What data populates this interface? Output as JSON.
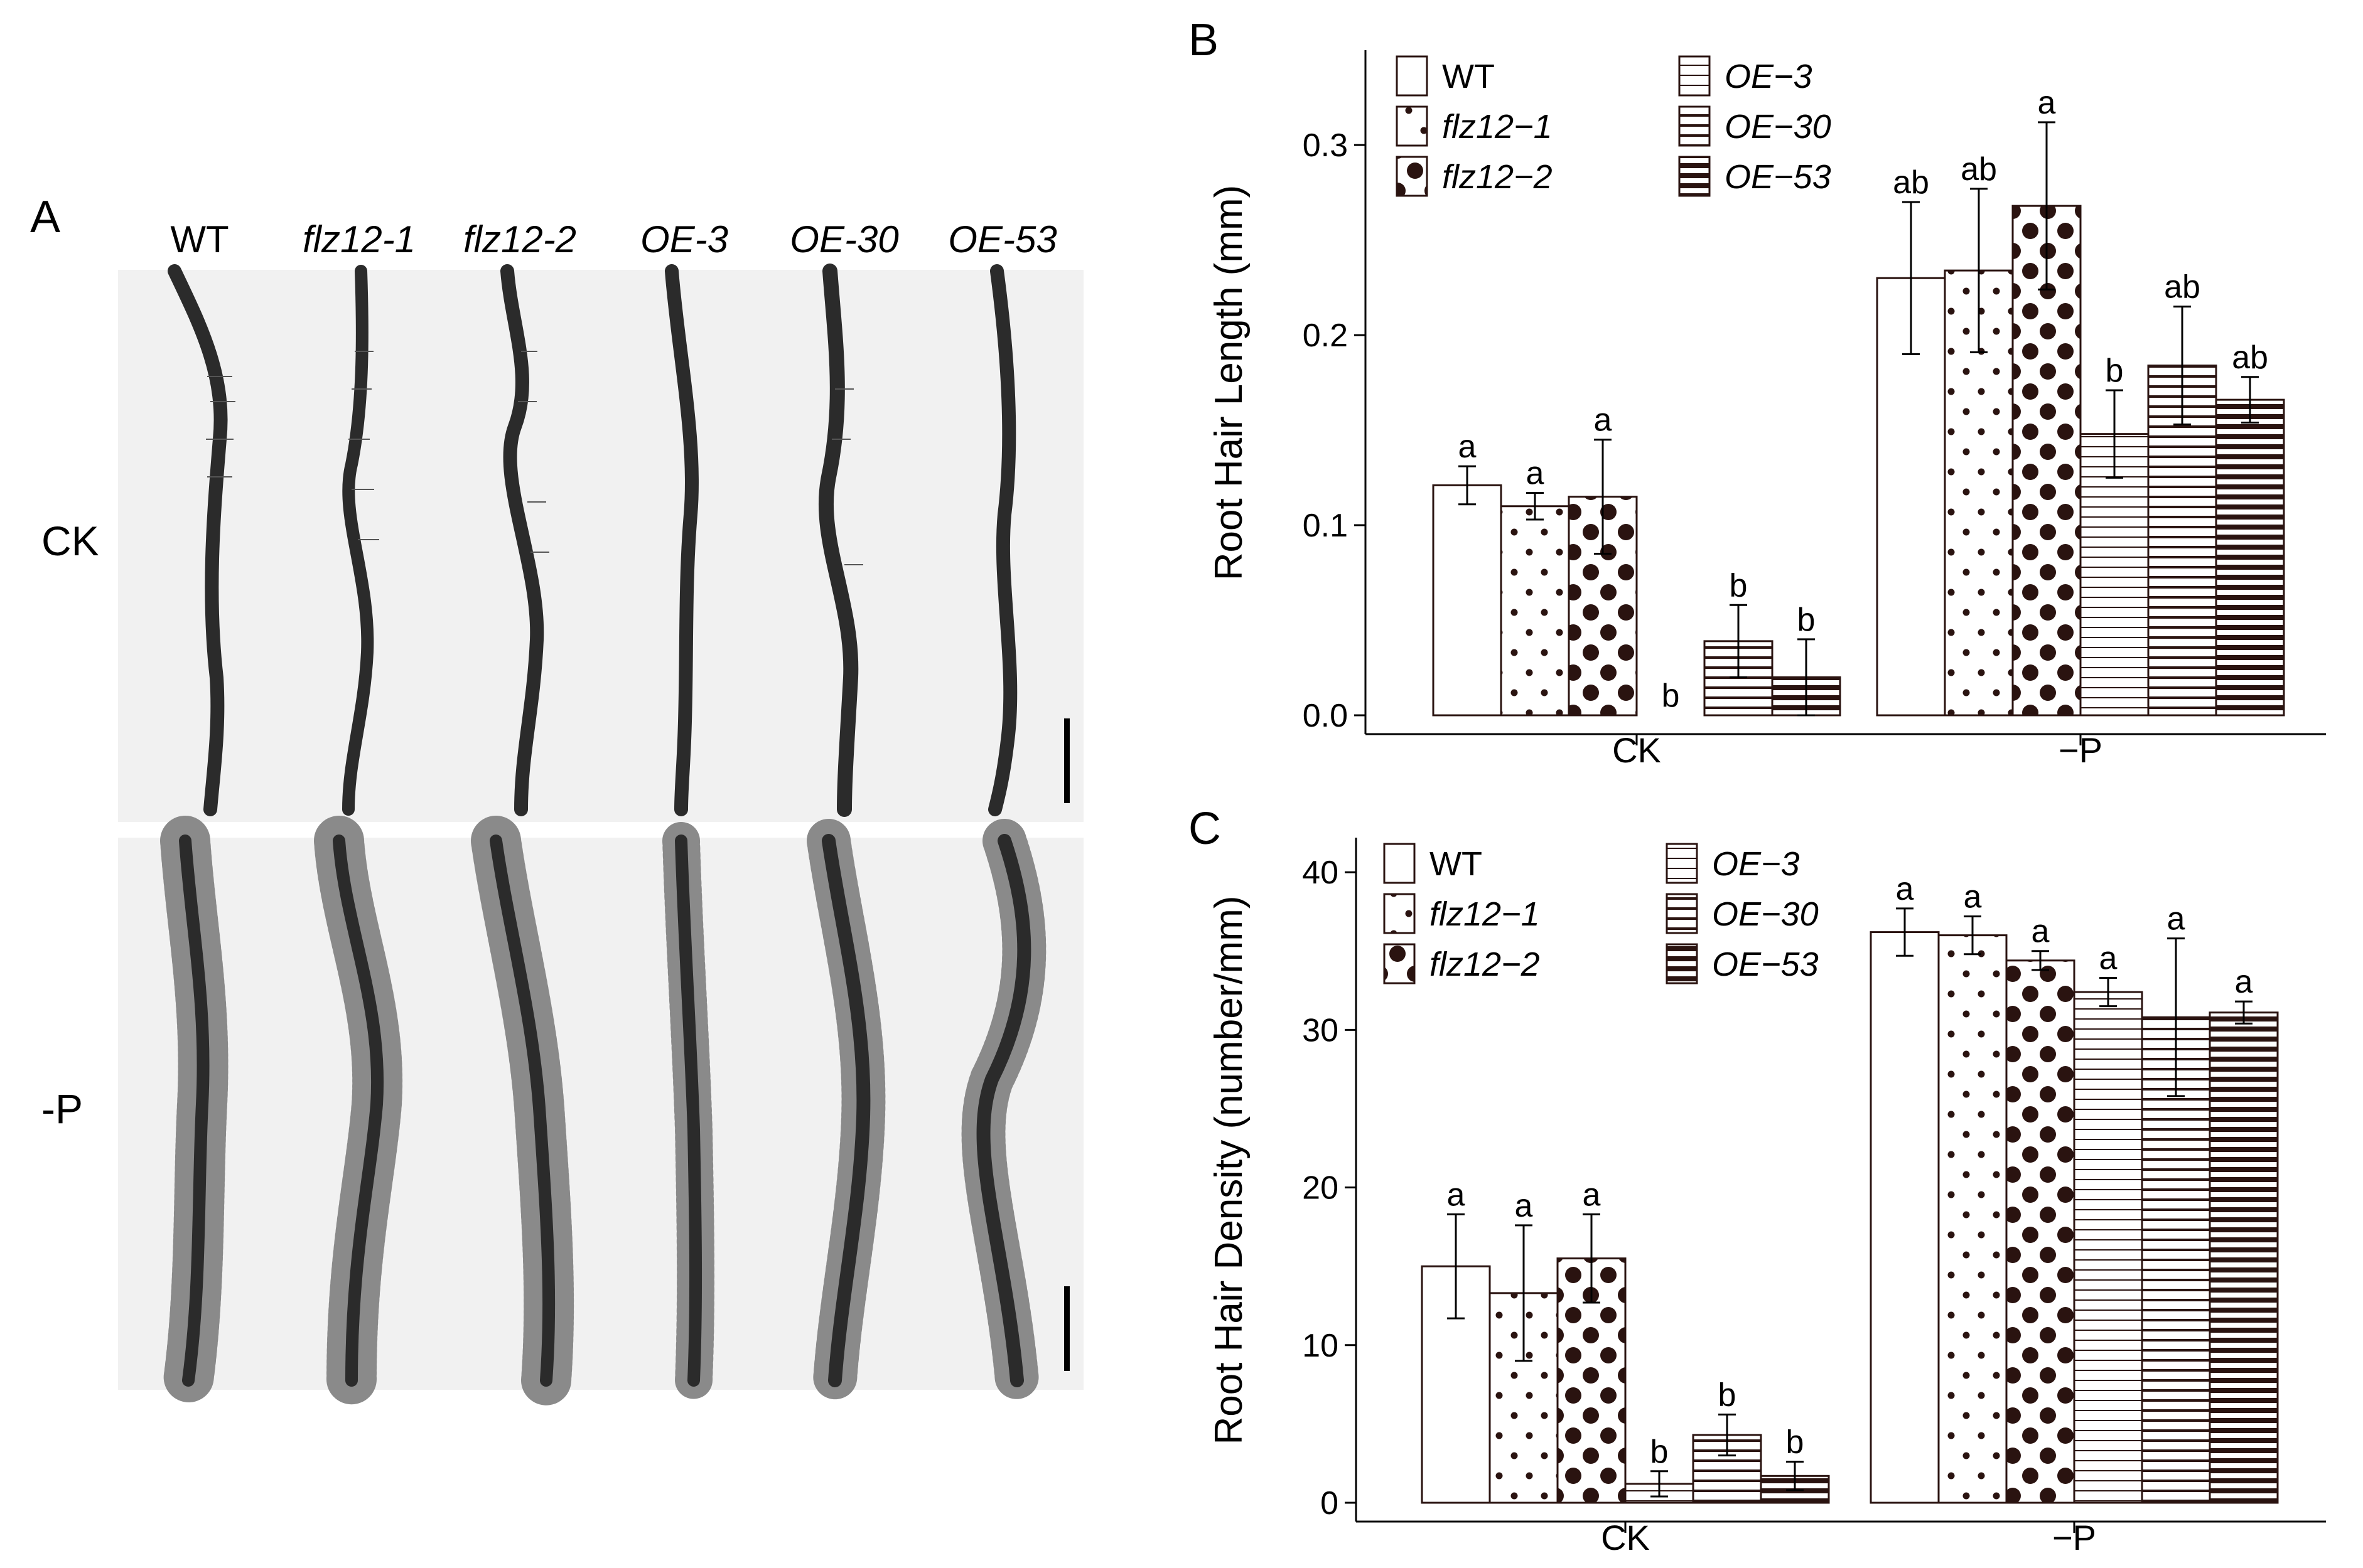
{
  "panels": {
    "a": "A",
    "b": "B",
    "c": "C"
  },
  "photo": {
    "columns": [
      "WT",
      "flz12-1",
      "flz12-2",
      "OE-3",
      "OE-30",
      "OE-53"
    ],
    "rows": [
      "CK",
      "-P"
    ]
  },
  "colors": {
    "ink": "#2a1310",
    "dot": "#2a1310",
    "axis": "#000000",
    "photo_bg": "#f1f1f1",
    "root": "#2b2b2b"
  },
  "chart_data": [
    {
      "id": "B",
      "type": "bar",
      "title": "",
      "xlabel": "",
      "ylabel": "Root Hair Length (mm)",
      "ylim": [
        0,
        0.34
      ],
      "yticks": [
        0.0,
        0.1,
        0.2,
        0.3
      ],
      "ytick_labels": [
        "0.0",
        "0.1",
        "0.2",
        "0.3"
      ],
      "categories": [
        "CK",
        "−P"
      ],
      "legend_columns": 2,
      "series": [
        {
          "name": "WT",
          "pattern": "open",
          "values": [
            0.121,
            0.23
          ],
          "errors": [
            0.01,
            0.04
          ],
          "sig": [
            "a",
            "ab"
          ]
        },
        {
          "name": "flz12−1",
          "pattern": "dots-small",
          "values": [
            0.11,
            0.234
          ],
          "errors": [
            0.007,
            0.043
          ],
          "sig": [
            "a",
            "ab"
          ]
        },
        {
          "name": "flz12−2",
          "pattern": "dots-large",
          "values": [
            0.115,
            0.268
          ],
          "errors": [
            0.03,
            0.044
          ],
          "sig": [
            "a",
            "a"
          ]
        },
        {
          "name": "OE−3",
          "pattern": "lines-thin",
          "values": [
            0.0,
            0.148
          ],
          "errors": [
            0.0,
            0.023
          ],
          "sig": [
            "b",
            "b"
          ]
        },
        {
          "name": "OE−30",
          "pattern": "lines-medium",
          "values": [
            0.039,
            0.184
          ],
          "errors": [
            0.019,
            0.031
          ],
          "sig": [
            "b",
            "ab"
          ]
        },
        {
          "name": "OE−53",
          "pattern": "lines-thick",
          "values": [
            0.02,
            0.166
          ],
          "errors": [
            0.02,
            0.012
          ],
          "sig": [
            "b",
            "ab"
          ]
        }
      ]
    },
    {
      "id": "C",
      "type": "bar",
      "title": "",
      "xlabel": "",
      "ylabel": "Root Hair Density (number/mm)",
      "ylim": [
        0,
        41
      ],
      "yticks": [
        0,
        10,
        20,
        30,
        40
      ],
      "ytick_labels": [
        "0",
        "10",
        "20",
        "30",
        "40"
      ],
      "categories": [
        "CK",
        "−P"
      ],
      "legend_columns": 2,
      "series": [
        {
          "name": "WT",
          "pattern": "open",
          "values": [
            15.0,
            36.2
          ],
          "errors": [
            3.3,
            1.5
          ],
          "sig": [
            "a",
            "a"
          ]
        },
        {
          "name": "flz12−1",
          "pattern": "dots-small",
          "values": [
            13.3,
            36.0
          ],
          "errors": [
            4.3,
            1.2
          ],
          "sig": [
            "a",
            "a"
          ]
        },
        {
          "name": "flz12−2",
          "pattern": "dots-large",
          "values": [
            15.5,
            34.4
          ],
          "errors": [
            2.8,
            0.6
          ],
          "sig": [
            "a",
            "a"
          ]
        },
        {
          "name": "OE−3",
          "pattern": "lines-thin",
          "values": [
            1.2,
            32.4
          ],
          "errors": [
            0.8,
            0.9
          ],
          "sig": [
            "b",
            "a"
          ]
        },
        {
          "name": "OE−30",
          "pattern": "lines-medium",
          "values": [
            4.3,
            30.8
          ],
          "errors": [
            1.3,
            5.0
          ],
          "sig": [
            "b",
            "a"
          ]
        },
        {
          "name": "OE−53",
          "pattern": "lines-thick",
          "values": [
            1.7,
            31.1
          ],
          "errors": [
            0.9,
            0.7
          ],
          "sig": [
            "b",
            "a"
          ]
        }
      ]
    }
  ]
}
